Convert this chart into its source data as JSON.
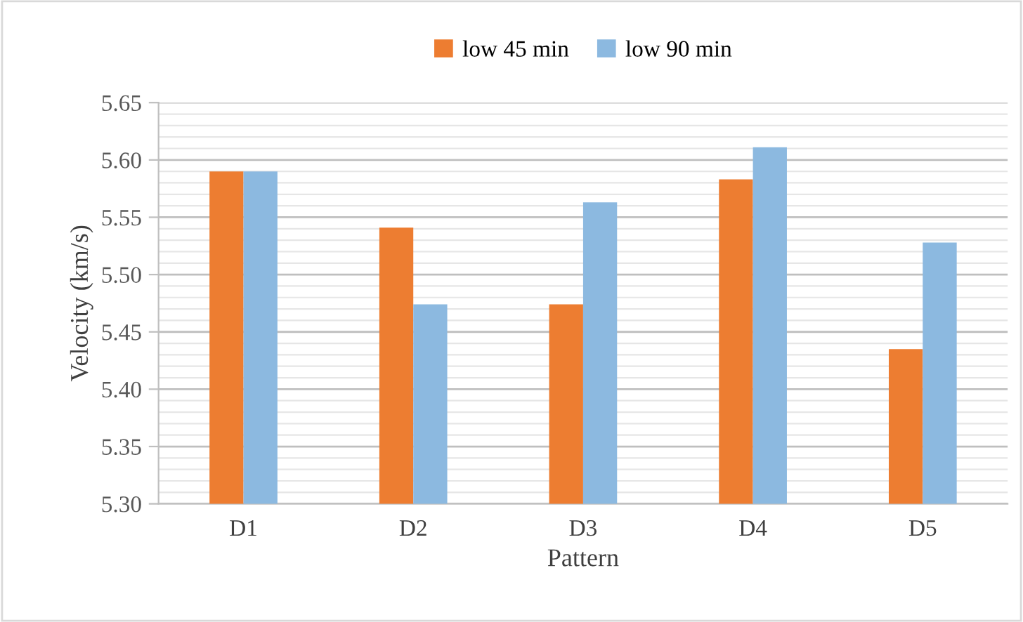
{
  "chart_data": {
    "type": "bar",
    "xlabel": "Pattern",
    "ylabel": "Velocity (km/s)",
    "categories": [
      "D1",
      "D2",
      "D3",
      "D4",
      "D5"
    ],
    "series": [
      {
        "name": "low 45 min",
        "color": "#ed7d31",
        "values": [
          5.59,
          5.541,
          5.474,
          5.583,
          5.435
        ]
      },
      {
        "name": "low 90 min",
        "color": "#8cb9e0",
        "values": [
          5.59,
          5.474,
          5.563,
          5.611,
          5.528
        ]
      }
    ],
    "ylim": [
      5.3,
      5.65
    ],
    "yticks": [
      {
        "value": 5.3,
        "label": "5.30"
      },
      {
        "value": 5.35,
        "label": "5.35"
      },
      {
        "value": 5.4,
        "label": "5.40"
      },
      {
        "value": 5.45,
        "label": "5.45"
      },
      {
        "value": 5.5,
        "label": "5.50"
      },
      {
        "value": 5.55,
        "label": "5.55"
      },
      {
        "value": 5.6,
        "label": "5.60"
      },
      {
        "value": 5.65,
        "label": "5.65"
      }
    ],
    "grid": "y",
    "legend": "top"
  }
}
